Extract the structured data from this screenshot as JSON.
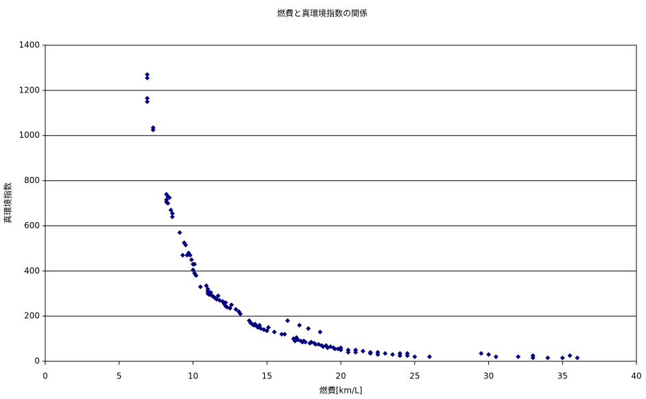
{
  "chart_data": {
    "type": "scatter",
    "title": "燃費と真環境指数の関係",
    "xlabel": "燃費[km/L]",
    "ylabel": "真環境指数",
    "color": "#000080",
    "grid": true,
    "xlim": [
      0,
      40
    ],
    "xticks": [
      0,
      5,
      10,
      15,
      20,
      25,
      30,
      35,
      40
    ],
    "ylim": [
      0,
      1400
    ],
    "yticks": [
      0,
      200,
      400,
      600,
      800,
      1000,
      1200,
      1400
    ],
    "x": [
      6.9,
      6.9,
      6.9,
      6.9,
      7.3,
      7.3,
      8.2,
      8.3,
      8.2,
      8.3,
      8.2,
      8.4,
      8.5,
      8.6,
      8.6,
      9.1,
      9.4,
      9.5,
      9.3,
      9.6,
      9.7,
      9.8,
      9.9,
      10,
      10.1,
      10,
      10.1,
      10.2,
      10.5,
      10.9,
      11,
      11,
      11,
      11.1,
      11.2,
      11.3,
      11.4,
      11.5,
      11.6,
      11.7,
      11.8,
      12,
      12.1,
      12.2,
      12.2,
      12.3,
      12.5,
      12.6,
      12.9,
      13.1,
      13.2,
      13.8,
      13.9,
      14,
      14.1,
      14.2,
      14.3,
      14.4,
      14.5,
      14.6,
      14.8,
      15,
      15.1,
      15.5,
      16,
      16.2,
      16.4,
      16.8,
      16.9,
      17,
      17.1,
      17.2,
      17.3,
      17.4,
      17.5,
      17.6,
      17.8,
      17.9,
      18,
      18.2,
      18.3,
      18.5,
      18.6,
      18.7,
      18.8,
      19,
      19.1,
      19.3,
      19.5,
      19.6,
      19.8,
      20,
      20,
      20.5,
      20.5,
      21,
      21,
      21.5,
      22,
      22,
      22.5,
      22.5,
      23,
      23.5,
      24,
      24,
      24.5,
      24.5,
      25,
      26,
      29.5,
      30,
      30.5,
      32,
      33,
      33,
      34,
      35,
      35.5,
      36
    ],
    "values": [
      1270,
      1255,
      1165,
      1150,
      1035,
      1025,
      740,
      730,
      715,
      700,
      705,
      725,
      670,
      655,
      640,
      570,
      525,
      515,
      470,
      470,
      480,
      470,
      450,
      430,
      430,
      405,
      390,
      380,
      330,
      335,
      320,
      310,
      300,
      295,
      305,
      290,
      285,
      280,
      275,
      290,
      270,
      265,
      255,
      260,
      245,
      240,
      235,
      250,
      230,
      220,
      210,
      180,
      170,
      165,
      160,
      165,
      155,
      150,
      160,
      145,
      140,
      135,
      150,
      130,
      120,
      120,
      180,
      100,
      90,
      105,
      95,
      160,
      90,
      85,
      90,
      85,
      145,
      80,
      85,
      80,
      75,
      75,
      130,
      70,
      65,
      70,
      60,
      65,
      60,
      55,
      55,
      50,
      60,
      50,
      40,
      50,
      40,
      45,
      40,
      35,
      40,
      30,
      35,
      30,
      35,
      25,
      35,
      25,
      20,
      20,
      35,
      30,
      20,
      20,
      25,
      15,
      15,
      15,
      25,
      15
    ]
  }
}
